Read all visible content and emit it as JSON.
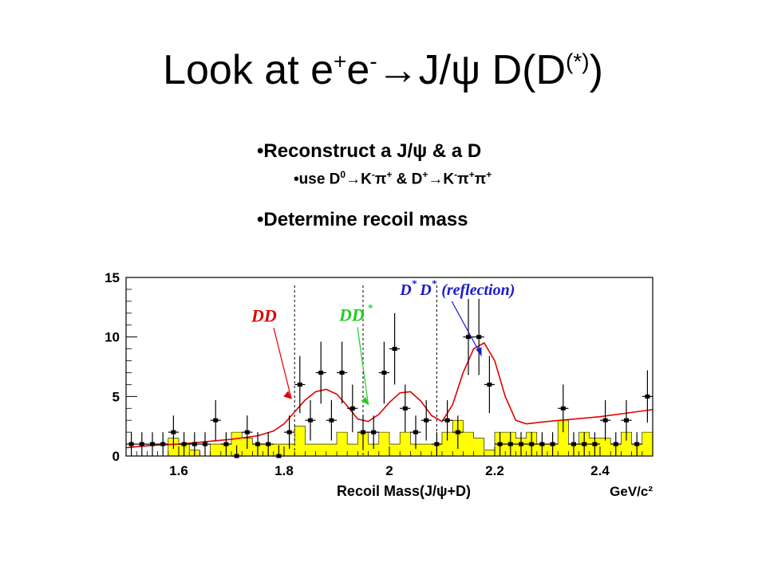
{
  "title": {
    "prefix": "Look at e",
    "sup1": "+",
    "mid1": "e",
    "sup2": "-",
    "arrow": "→",
    "mid2": "J/ψ D(D",
    "sup3": "(*)",
    "suffix": ")"
  },
  "bullets": [
    {
      "bullet": "•",
      "text": "Reconstruct a J/ψ  & a D"
    },
    {
      "bullet": "•",
      "parts": [
        "use D",
        "0",
        "→K",
        "-",
        "π",
        "+",
        " & D",
        "+",
        "→K",
        "-",
        "π",
        "+",
        "π",
        "+"
      ]
    },
    {
      "bullet": "•",
      "text": "Determine recoil mass"
    }
  ],
  "colors": {
    "histogram_fill": "#ffff00",
    "fit_curve": "#e00000",
    "dd_label": "#e00000",
    "ddstar_label": "#22cc22",
    "dstar_label": "#1a1acc",
    "data_points": "#000000"
  },
  "chart_data": {
    "type": "histogram",
    "xlabel": "Recoil Mass(J/ψ+D)",
    "xunit": "GeV/c²",
    "xlim": [
      1.5,
      2.5
    ],
    "ylim": [
      0,
      15
    ],
    "x_ticks": [
      "1.6",
      "1.8",
      "2",
      "2.2",
      "2.4"
    ],
    "x_tick_values": [
      1.6,
      1.8,
      2.0,
      2.2,
      2.4
    ],
    "y_ticks": [
      "0",
      "5",
      "10",
      "15"
    ],
    "y_tick_values": [
      0,
      5,
      10,
      15
    ],
    "bin_width": 0.02,
    "data_x": [
      1.51,
      1.53,
      1.55,
      1.57,
      1.59,
      1.61,
      1.63,
      1.65,
      1.67,
      1.69,
      1.71,
      1.73,
      1.75,
      1.77,
      1.79,
      1.81,
      1.83,
      1.85,
      1.87,
      1.89,
      1.91,
      1.93,
      1.95,
      1.97,
      1.99,
      2.01,
      2.03,
      2.05,
      2.07,
      2.09,
      2.11,
      2.13,
      2.15,
      2.17,
      2.19,
      2.21,
      2.23,
      2.25,
      2.27,
      2.29,
      2.31,
      2.33,
      2.35,
      2.37,
      2.39,
      2.41,
      2.43,
      2.45,
      2.47,
      2.49
    ],
    "data_y": [
      1,
      1,
      1,
      1,
      2,
      1,
      1,
      1,
      3,
      1,
      0,
      2,
      1,
      1,
      0,
      2,
      6,
      3,
      7,
      3,
      7,
      4,
      2,
      2,
      7,
      9,
      4,
      2,
      3,
      1,
      3,
      2,
      10,
      10,
      6,
      1,
      1,
      1,
      1,
      1,
      1,
      4,
      1,
      1,
      1,
      3,
      1,
      3,
      1,
      5
    ],
    "data_err": [
      1.0,
      1.0,
      1.0,
      1.0,
      1.4,
      1.0,
      1.0,
      1.0,
      1.7,
      1.0,
      0.9,
      1.4,
      1.0,
      1.0,
      0.9,
      1.4,
      2.4,
      1.7,
      2.6,
      1.7,
      2.6,
      2.0,
      1.4,
      1.4,
      2.6,
      3.0,
      2.0,
      1.4,
      1.7,
      1.0,
      1.7,
      1.4,
      3.2,
      3.2,
      2.4,
      1.0,
      1.0,
      1.0,
      1.0,
      1.0,
      1.0,
      2.0,
      1.0,
      1.0,
      1.0,
      1.7,
      1.0,
      1.7,
      1.0,
      2.2
    ],
    "background_hist": [
      0,
      0,
      0,
      0,
      1.5,
      1,
      0.5,
      0,
      1,
      1,
      2,
      1.5,
      1,
      1,
      1,
      1,
      2.5,
      1,
      1,
      1,
      2,
      1,
      2,
      1,
      2,
      1,
      2,
      1,
      1,
      1,
      2,
      3,
      2,
      1.5,
      0.5,
      2,
      2,
      1.5,
      2,
      1,
      1,
      3,
      1,
      2,
      1.5,
      1.5,
      1,
      2,
      1,
      2
    ],
    "fit_x": [
      1.5,
      1.55,
      1.6,
      1.65,
      1.7,
      1.75,
      1.78,
      1.8,
      1.82,
      1.84,
      1.86,
      1.88,
      1.9,
      1.92,
      1.94,
      1.96,
      1.98,
      2.0,
      2.02,
      2.04,
      2.06,
      2.08,
      2.1,
      2.12,
      2.14,
      2.16,
      2.18,
      2.2,
      2.22,
      2.24,
      2.26,
      2.3,
      2.35,
      2.4,
      2.45,
      2.5
    ],
    "fit_y": [
      0.7,
      0.9,
      1.0,
      1.2,
      1.4,
      1.7,
      2.1,
      2.7,
      3.7,
      4.7,
      5.4,
      5.6,
      5.2,
      4.2,
      3.1,
      2.9,
      3.5,
      4.5,
      5.3,
      5.4,
      4.6,
      3.4,
      2.9,
      4.3,
      7.0,
      9.0,
      9.5,
      8.0,
      5.0,
      3.0,
      2.7,
      2.9,
      3.1,
      3.3,
      3.6,
      3.9
    ],
    "dividers": [
      1.82,
      1.95,
      2.09
    ],
    "annotations": [
      {
        "id": "dd",
        "text": "DD",
        "x": 1.75,
        "y": 11.3,
        "to_x": 1.82,
        "to_y": 4.8
      },
      {
        "id": "ddstar",
        "text": "DD",
        "sup": "*",
        "x": 1.9,
        "y": 11.9,
        "to_x": 1.96,
        "to_y": 4.3
      },
      {
        "id": "dstardstar",
        "text_parts": [
          "D",
          "*",
          "D",
          "*",
          " (reflection)"
        ],
        "x": 2.02,
        "y": 14.2,
        "to_x": 2.175,
        "to_y": 8.4
      }
    ]
  }
}
